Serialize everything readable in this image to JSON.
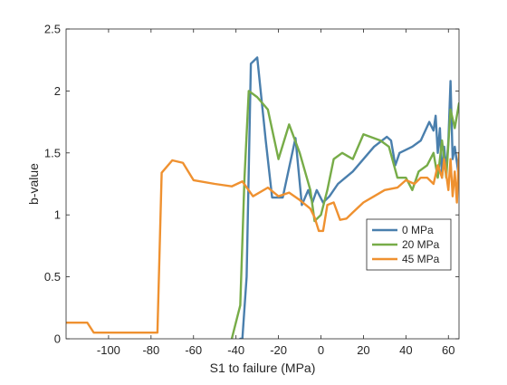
{
  "chart_data": {
    "type": "line",
    "xlabel": "S1 to failure (MPa)",
    "ylabel": "b-value",
    "xlim": [
      -120,
      65
    ],
    "ylim": [
      0,
      2.5
    ],
    "xticks": [
      -100,
      -80,
      -60,
      -40,
      -20,
      0,
      20,
      40,
      60
    ],
    "yticks": [
      0,
      0.5,
      1,
      1.5,
      2,
      2.5
    ],
    "xtick_labels": [
      "-100",
      "-80",
      "-60",
      "-40",
      "-20",
      "0",
      "20",
      "40",
      "60"
    ],
    "ytick_labels": [
      "0",
      "0.5",
      "1",
      "1.5",
      "2",
      "2.5"
    ],
    "grid": false,
    "legend_position": "right",
    "series": [
      {
        "name": "0 MPa",
        "color": "#4a7fad",
        "points": [
          [
            -38,
            0
          ],
          [
            -37,
            0
          ],
          [
            -35,
            0.5
          ],
          [
            -33,
            2.22
          ],
          [
            -30,
            2.27
          ],
          [
            -26,
            1.6
          ],
          [
            -23,
            1.14
          ],
          [
            -18,
            1.14
          ],
          [
            -12,
            1.62
          ],
          [
            -9,
            1.08
          ],
          [
            -6,
            1.2
          ],
          [
            -4,
            1.1
          ],
          [
            -2,
            1.2
          ],
          [
            1,
            1.1
          ],
          [
            4,
            1.15
          ],
          [
            8,
            1.25
          ],
          [
            15,
            1.35
          ],
          [
            25,
            1.55
          ],
          [
            31,
            1.63
          ],
          [
            33,
            1.6
          ],
          [
            35,
            1.4
          ],
          [
            37,
            1.5
          ],
          [
            43,
            1.55
          ],
          [
            47,
            1.6
          ],
          [
            51,
            1.75
          ],
          [
            53,
            1.68
          ],
          [
            54,
            1.8
          ],
          [
            55,
            1.5
          ],
          [
            56,
            1.7
          ],
          [
            57,
            1.3
          ],
          [
            58,
            1.55
          ],
          [
            59,
            1.35
          ],
          [
            60,
            1.6
          ],
          [
            61,
            2.08
          ],
          [
            62,
            1.45
          ],
          [
            63,
            1.55
          ],
          [
            65,
            1.3
          ]
        ]
      },
      {
        "name": "20 MPa",
        "color": "#77ac48",
        "points": [
          [
            -42,
            0
          ],
          [
            -38,
            0.27
          ],
          [
            -36,
            1.3
          ],
          [
            -34,
            2.0
          ],
          [
            -30,
            1.95
          ],
          [
            -25,
            1.85
          ],
          [
            -20,
            1.45
          ],
          [
            -15,
            1.73
          ],
          [
            -10,
            1.5
          ],
          [
            -5,
            1.2
          ],
          [
            -3,
            0.95
          ],
          [
            0,
            1.0
          ],
          [
            3,
            1.2
          ],
          [
            6,
            1.45
          ],
          [
            10,
            1.5
          ],
          [
            15,
            1.45
          ],
          [
            20,
            1.65
          ],
          [
            28,
            1.6
          ],
          [
            32,
            1.55
          ],
          [
            36,
            1.3
          ],
          [
            40,
            1.3
          ],
          [
            43,
            1.2
          ],
          [
            46,
            1.35
          ],
          [
            50,
            1.4
          ],
          [
            53,
            1.5
          ],
          [
            55,
            1.3
          ],
          [
            57,
            1.6
          ],
          [
            59,
            1.3
          ],
          [
            61,
            1.85
          ],
          [
            63,
            1.7
          ],
          [
            65,
            1.9
          ]
        ]
      },
      {
        "name": "45 MPa",
        "color": "#ef9130",
        "points": [
          [
            -120,
            0.13
          ],
          [
            -110,
            0.13
          ],
          [
            -107,
            0.05
          ],
          [
            -100,
            0.05
          ],
          [
            -77,
            0.05
          ],
          [
            -75,
            1.34
          ],
          [
            -70,
            1.44
          ],
          [
            -65,
            1.42
          ],
          [
            -60,
            1.28
          ],
          [
            -50,
            1.25
          ],
          [
            -42,
            1.23
          ],
          [
            -37,
            1.27
          ],
          [
            -32,
            1.15
          ],
          [
            -25,
            1.22
          ],
          [
            -20,
            1.15
          ],
          [
            -15,
            1.18
          ],
          [
            -10,
            1.12
          ],
          [
            -5,
            1.05
          ],
          [
            -3,
            0.98
          ],
          [
            -1,
            0.87
          ],
          [
            1,
            0.87
          ],
          [
            3,
            1.08
          ],
          [
            6,
            1.1
          ],
          [
            9,
            0.96
          ],
          [
            12,
            0.97
          ],
          [
            15,
            1.02
          ],
          [
            20,
            1.1
          ],
          [
            25,
            1.15
          ],
          [
            30,
            1.2
          ],
          [
            36,
            1.22
          ],
          [
            40,
            1.28
          ],
          [
            44,
            1.25
          ],
          [
            47,
            1.3
          ],
          [
            50,
            1.3
          ],
          [
            53,
            1.25
          ],
          [
            55,
            1.4
          ],
          [
            57,
            1.3
          ],
          [
            58,
            1.45
          ],
          [
            60,
            1.2
          ],
          [
            61,
            1.45
          ],
          [
            62,
            1.15
          ],
          [
            63,
            1.35
          ],
          [
            64,
            1.1
          ],
          [
            65,
            1.5
          ]
        ]
      }
    ]
  }
}
